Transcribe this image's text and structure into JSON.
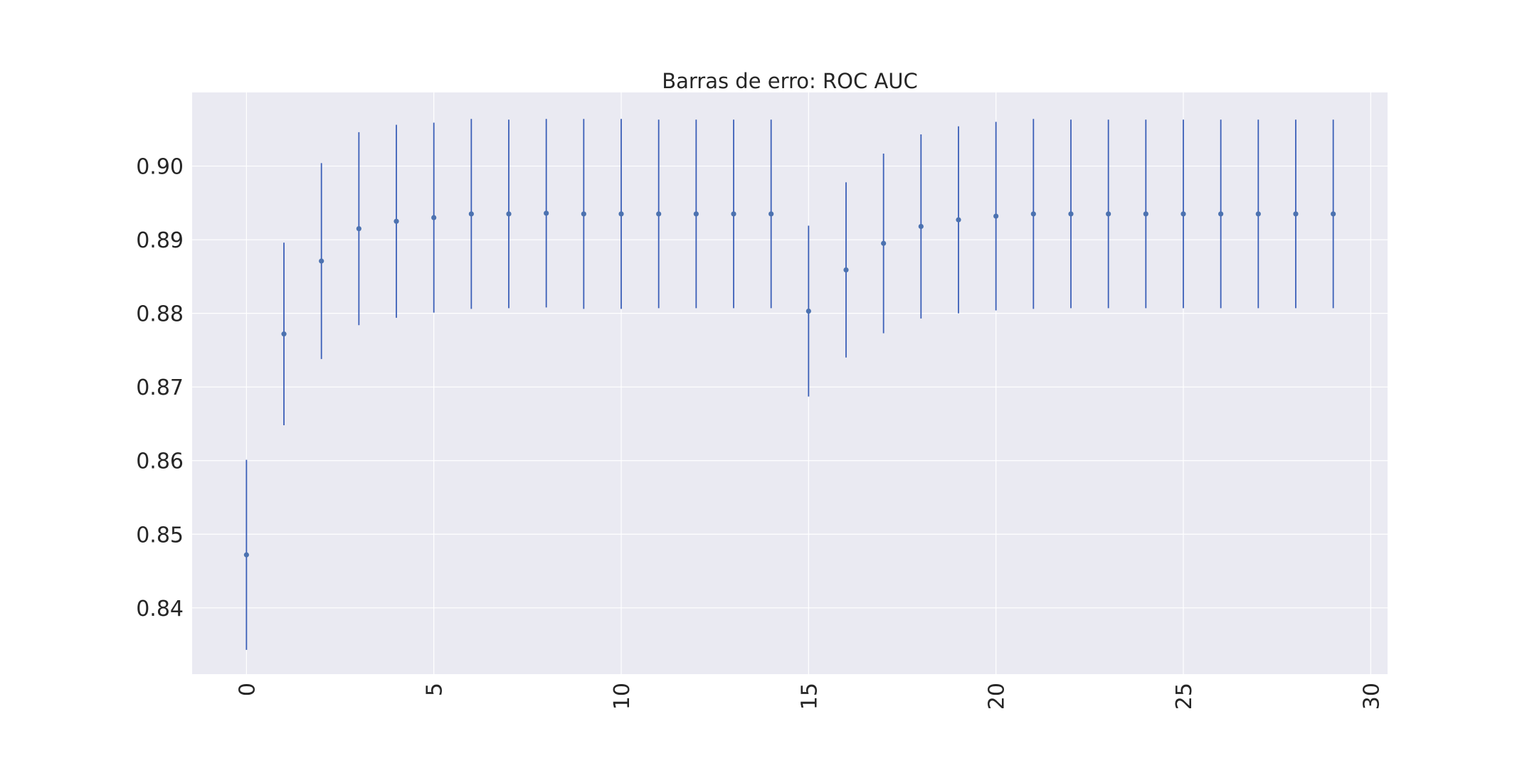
{
  "chart_data": {
    "type": "scatter",
    "subtype": "errorbar",
    "title": "Barras de erro: ROC AUC",
    "xlabel": "",
    "ylabel": "",
    "xlim": [
      -1.45,
      30.45
    ],
    "ylim": [
      0.831,
      0.91
    ],
    "xticks": [
      0,
      5,
      10,
      15,
      20,
      25,
      30
    ],
    "yticks": [
      0.84,
      0.85,
      0.86,
      0.87,
      0.88,
      0.89,
      0.9
    ],
    "ytick_labels": [
      "0.84",
      "0.85",
      "0.86",
      "0.87",
      "0.88",
      "0.89",
      "0.90"
    ],
    "xtick_rotation": 90,
    "grid": true,
    "style": "seaborn-darkgrid",
    "colors": {
      "series": "#4c72b0",
      "errorbar": "#3b5fb8",
      "background": "#eaeaf2",
      "grid": "#ffffff"
    },
    "series": [
      {
        "x": [
          0,
          1,
          2,
          3,
          4,
          5,
          6,
          7,
          8,
          9,
          10,
          11,
          12,
          13,
          14,
          15,
          16,
          17,
          18,
          19,
          20,
          21,
          22,
          23,
          24,
          25,
          26,
          27,
          28,
          29
        ],
        "y": [
          0.8472,
          0.8772,
          0.8871,
          0.8915,
          0.8925,
          0.893,
          0.8935,
          0.8935,
          0.8936,
          0.8935,
          0.8935,
          0.8935,
          0.8935,
          0.8935,
          0.8935,
          0.8803,
          0.8859,
          0.8895,
          0.8918,
          0.8927,
          0.8932,
          0.8935,
          0.8935,
          0.8935,
          0.8935,
          0.8935,
          0.8935,
          0.8935,
          0.8935,
          0.8935
        ],
        "yerr": [
          0.0129,
          0.0124,
          0.0133,
          0.0131,
          0.0131,
          0.0129,
          0.0129,
          0.0128,
          0.0128,
          0.0129,
          0.0129,
          0.0128,
          0.0128,
          0.0128,
          0.0128,
          0.0116,
          0.0119,
          0.0122,
          0.0125,
          0.0127,
          0.0128,
          0.0129,
          0.0128,
          0.0128,
          0.0128,
          0.0128,
          0.0128,
          0.0128,
          0.0128,
          0.0128
        ]
      }
    ]
  }
}
